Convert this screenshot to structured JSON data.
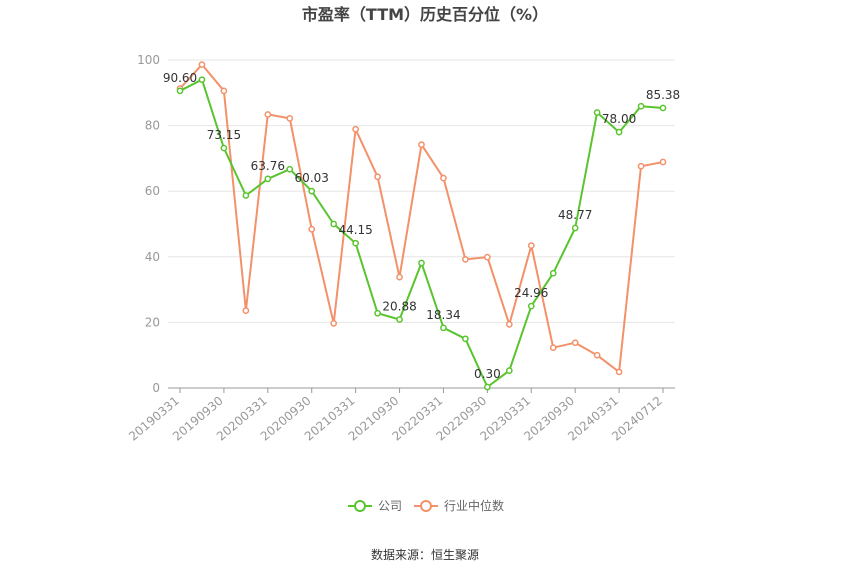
{
  "chart_data": {
    "type": "line",
    "title": "市盈率（TTM）历史百分位（%）",
    "source": "数据来源：恒生聚源",
    "ylim": [
      0,
      100
    ],
    "yticks": [
      0,
      20,
      40,
      60,
      80,
      100
    ],
    "grid": true,
    "legend_position": "bottom-center",
    "x": [
      "20190331",
      "20190630",
      "20190930",
      "20191231",
      "20200331",
      "20200630",
      "20200930",
      "20201231",
      "20210331",
      "20210630",
      "20210930",
      "20211231",
      "20220331",
      "20220630",
      "20220930",
      "20221231",
      "20230331",
      "20230630",
      "20230930",
      "20231231",
      "20240331",
      "20240630",
      "20240712"
    ],
    "xtick_labels": [
      "20190331",
      "20190930",
      "20200331",
      "20200930",
      "20210331",
      "20210930",
      "20220331",
      "20220930",
      "20230331",
      "20230930",
      "20240331",
      "20240712"
    ],
    "series": [
      {
        "name": "公司",
        "color": "#5ac42f",
        "values": [
          90.6,
          94.0,
          73.15,
          58.7,
          63.76,
          66.7,
          60.03,
          50.0,
          44.15,
          22.8,
          20.88,
          38.1,
          18.34,
          15.0,
          0.3,
          5.3,
          24.96,
          35.0,
          48.77,
          84.0,
          78.0,
          85.9,
          85.38
        ],
        "data_labels": {
          "0": "90.60",
          "2": "73.15",
          "4": "63.76",
          "6": "60.03",
          "8": "44.15",
          "10": "20.88",
          "12": "18.34",
          "14": "0.30",
          "16": "24.96",
          "18": "48.77",
          "20": "78.00",
          "22": "85.38"
        }
      },
      {
        "name": "行业中位数",
        "color": "#f2916a",
        "values": [
          91.3,
          98.6,
          90.6,
          23.6,
          83.4,
          82.2,
          48.4,
          19.7,
          78.9,
          64.4,
          33.8,
          74.2,
          64.0,
          39.2,
          39.9,
          19.4,
          43.4,
          12.3,
          13.8,
          10.0,
          4.9,
          67.6,
          68.9
        ]
      }
    ]
  }
}
